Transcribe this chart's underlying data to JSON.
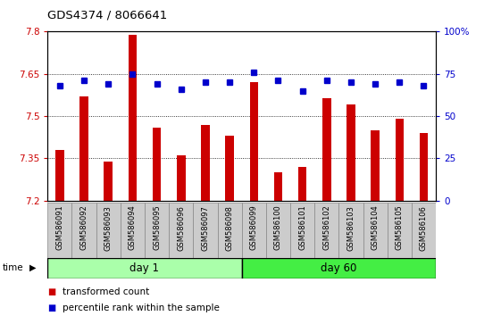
{
  "title": "GDS4374 / 8066641",
  "samples": [
    "GSM586091",
    "GSM586092",
    "GSM586093",
    "GSM586094",
    "GSM586095",
    "GSM586096",
    "GSM586097",
    "GSM586098",
    "GSM586099",
    "GSM586100",
    "GSM586101",
    "GSM586102",
    "GSM586103",
    "GSM586104",
    "GSM586105",
    "GSM586106"
  ],
  "transformed_count_all": [
    7.38,
    7.57,
    7.34,
    7.79,
    7.46,
    7.36,
    7.47,
    7.43,
    7.62,
    7.3,
    7.32,
    7.565,
    7.54,
    7.45,
    7.49,
    7.44
  ],
  "percentile_rank": [
    68,
    71,
    69,
    75,
    69,
    66,
    70,
    70,
    76,
    71,
    65,
    71,
    70,
    69,
    70,
    68
  ],
  "ylim_left": [
    7.2,
    7.8
  ],
  "ylim_right": [
    0,
    100
  ],
  "yticks_left": [
    7.2,
    7.35,
    7.5,
    7.65,
    7.8
  ],
  "yticks_right": [
    0,
    25,
    50,
    75,
    100
  ],
  "bar_color": "#cc0000",
  "dot_color": "#0000cc",
  "day1_color": "#aaffaa",
  "day60_color": "#44ee44",
  "day1_samples": 8,
  "day60_samples": 8,
  "day1_label": "day 1",
  "day60_label": "day 60",
  "xlabel_color": "#cc0000",
  "ylabel_right_color": "#0000cc",
  "grid_color": "#000000",
  "label_box_color": "#cccccc",
  "background_color": "#ffffff"
}
